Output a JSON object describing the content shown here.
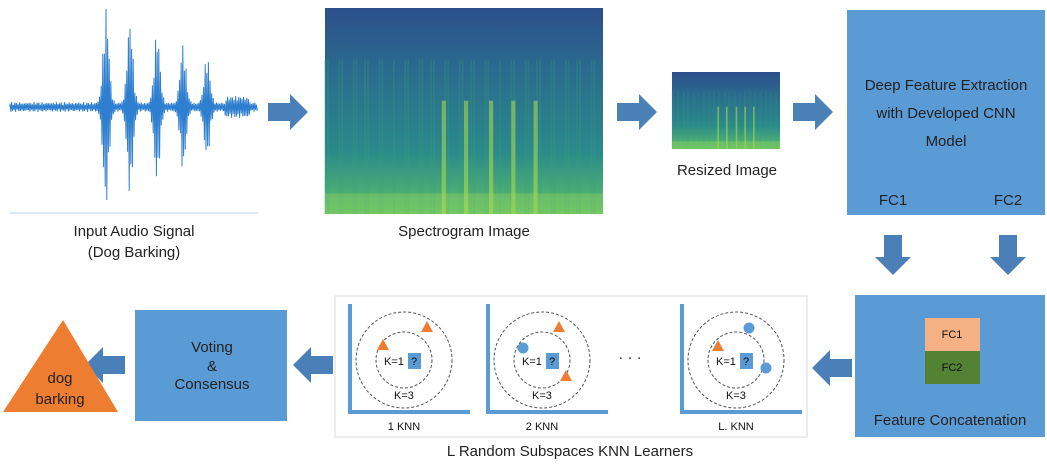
{
  "input": {
    "label": [
      "Input Audio Signal",
      "(Dog Barking)"
    ]
  },
  "spectrogram": {
    "label": "Spectrogram Image"
  },
  "resized": {
    "label": "Resized Image"
  },
  "cnn": {
    "label": [
      "Deep Feature Extraction",
      "with Developed CNN",
      "Model"
    ],
    "outputs": [
      "FC1",
      "FC2"
    ]
  },
  "concat": {
    "blocks": [
      "FC1",
      "FC2"
    ],
    "label": "Feature Concatenation"
  },
  "knn": {
    "learners": [
      {
        "inner": "K=1",
        "query": "?",
        "outer": "K=3",
        "label": "1 KNN"
      },
      {
        "inner": "K=1",
        "query": "?",
        "outer": "K=3",
        "label": "2 KNN"
      },
      {
        "inner": "K=1",
        "query": "?",
        "outer": "K=3",
        "label": "L. KNN"
      }
    ],
    "ellipsis": "·   ·   ·",
    "label": "L  Random Subspaces KNN Learners"
  },
  "voting": {
    "label": [
      "Voting",
      "&",
      "Consensus"
    ]
  },
  "output": {
    "label": [
      "dog",
      "barking"
    ]
  }
}
